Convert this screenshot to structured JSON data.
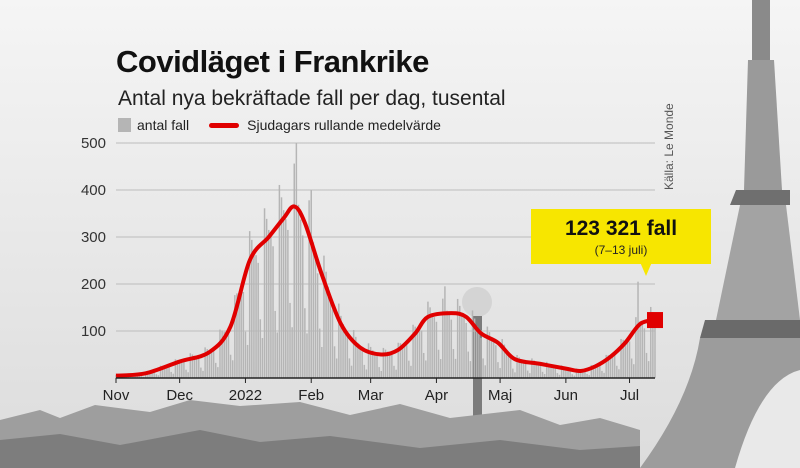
{
  "colors": {
    "bars": "#b5b5b5",
    "line": "#e00000",
    "callout": "#f7e600",
    "grid": "#bcbcbc"
  },
  "chart_data": {
    "type": "bar",
    "title": "Covidläget i Frankrike",
    "subtitle": "Antal nya bekräftade fall per dag, tusental",
    "source": "Källa: Le Monde",
    "legend": {
      "placement": "top-left",
      "bars_label": "antal fall",
      "line_label": "Sjudagars rullande medelvärde"
    },
    "ylim": [
      0,
      500
    ],
    "yticks": [
      100,
      200,
      300,
      400,
      500
    ],
    "grid": true,
    "xlim": [
      "2021-11-01",
      "2022-07-13"
    ],
    "xticks": [
      {
        "date": "2021-11-01",
        "label": "Nov"
      },
      {
        "date": "2021-12-01",
        "label": "Dec"
      },
      {
        "date": "2022-01-01",
        "label": "2022"
      },
      {
        "date": "2022-02-01",
        "label": "Feb"
      },
      {
        "date": "2022-03-01",
        "label": "Mar"
      },
      {
        "date": "2022-04-01",
        "label": "Apr"
      },
      {
        "date": "2022-05-01",
        "label": "Maj"
      },
      {
        "date": "2022-06-01",
        "label": "Jun"
      },
      {
        "date": "2022-07-01",
        "label": "Jul"
      }
    ],
    "series": [
      {
        "name": "Sjudagars rullande medelvärde",
        "type": "line",
        "points": [
          {
            "date": "2021-11-01",
            "value": 5
          },
          {
            "date": "2021-11-15",
            "value": 10
          },
          {
            "date": "2021-12-01",
            "value": 35
          },
          {
            "date": "2021-12-15",
            "value": 55
          },
          {
            "date": "2021-12-25",
            "value": 110
          },
          {
            "date": "2022-01-03",
            "value": 250
          },
          {
            "date": "2022-01-12",
            "value": 300
          },
          {
            "date": "2022-01-19",
            "value": 340
          },
          {
            "date": "2022-01-24",
            "value": 365
          },
          {
            "date": "2022-01-29",
            "value": 330
          },
          {
            "date": "2022-02-06",
            "value": 220
          },
          {
            "date": "2022-02-15",
            "value": 115
          },
          {
            "date": "2022-02-24",
            "value": 65
          },
          {
            "date": "2022-03-06",
            "value": 50
          },
          {
            "date": "2022-03-14",
            "value": 60
          },
          {
            "date": "2022-03-22",
            "value": 95
          },
          {
            "date": "2022-03-28",
            "value": 130
          },
          {
            "date": "2022-04-08",
            "value": 138
          },
          {
            "date": "2022-04-15",
            "value": 130
          },
          {
            "date": "2022-04-22",
            "value": 95
          },
          {
            "date": "2022-04-30",
            "value": 75
          },
          {
            "date": "2022-05-08",
            "value": 40
          },
          {
            "date": "2022-05-20",
            "value": 30
          },
          {
            "date": "2022-06-01",
            "value": 20
          },
          {
            "date": "2022-06-08",
            "value": 15
          },
          {
            "date": "2022-06-15",
            "value": 25
          },
          {
            "date": "2022-06-22",
            "value": 45
          },
          {
            "date": "2022-06-29",
            "value": 75
          },
          {
            "date": "2022-07-06",
            "value": 115
          },
          {
            "date": "2022-07-13",
            "value": 123.3
          }
        ]
      },
      {
        "name": "antal fall",
        "type": "bar",
        "peak_values": [
          {
            "date": "2022-01-25",
            "value": 500
          },
          {
            "date": "2022-02-01",
            "value": 400
          },
          {
            "date": "2022-04-05",
            "value": 195
          },
          {
            "date": "2022-07-05",
            "value": 205
          }
        ]
      }
    ],
    "callout": {
      "value_label": "123 321 fall",
      "period_label": "(7–13 juli)",
      "date": "2022-07-13",
      "value": 123.3
    }
  }
}
